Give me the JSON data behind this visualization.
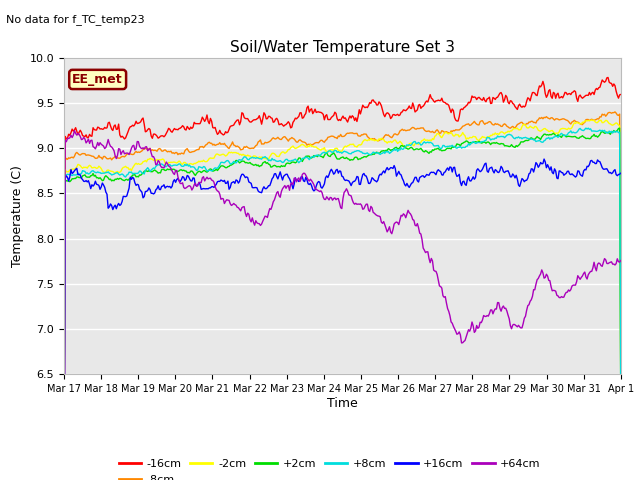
{
  "title": "Soil/Water Temperature Set 3",
  "subtitle": "No data for f_TC_temp23",
  "ylabel": "Temperature (C)",
  "xlabel": "Time",
  "ylim": [
    6.5,
    10.0
  ],
  "background_color": "#ffffff",
  "plot_bg_color": "#e8e8e8",
  "annotation_text": "EE_met",
  "annotation_bg": "#ffffc0",
  "annotation_border": "#8b0000",
  "series_colors": {
    "-16cm": "#ff0000",
    "-8cm": "#ff8800",
    "-2cm": "#ffff00",
    "+2cm": "#00dd00",
    "+8cm": "#00dddd",
    "+16cm": "#0000ff",
    "+64cm": "#aa00bb"
  },
  "x_tick_labels": [
    "Mar 17",
    "Mar 18",
    "Mar 19",
    "Mar 20",
    "Mar 21",
    "Mar 22",
    "Mar 23",
    "Mar 24",
    "Mar 25",
    "Mar 26",
    "Mar 27",
    "Mar 28",
    "Mar 29",
    "Mar 30",
    "Mar 31",
    "Apr 1"
  ],
  "y_ticks": [
    6.5,
    7.0,
    7.5,
    8.0,
    8.5,
    9.0,
    9.5,
    10.0
  ],
  "num_points": 480,
  "figsize": [
    6.4,
    4.8
  ],
  "dpi": 100
}
